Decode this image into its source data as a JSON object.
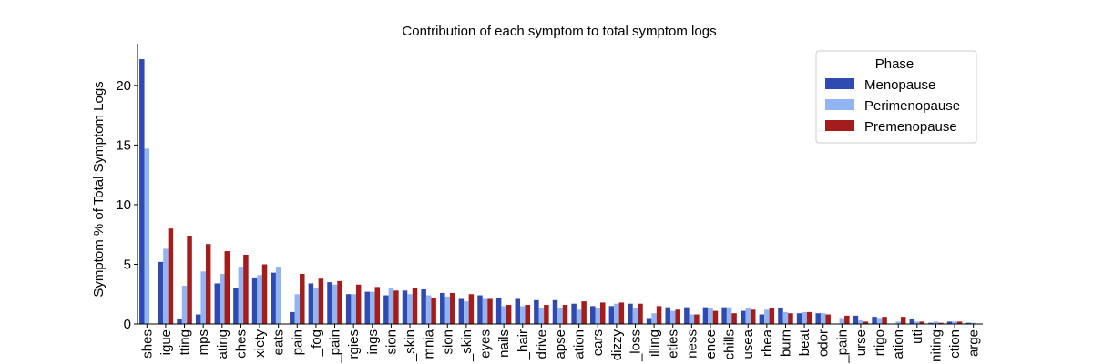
{
  "chart_data": {
    "type": "bar",
    "title": "Contribution of each symptom to total symptom logs",
    "xlabel": "",
    "ylabel": "Symptom % of Total Symptom Logs",
    "ylim": [
      0,
      23.5
    ],
    "yticks": [
      0,
      5,
      10,
      15,
      20
    ],
    "grid": false,
    "legend": {
      "title": "Phase",
      "position": "top-right"
    },
    "categories": [
      "shes",
      "igue",
      "tting",
      "mps",
      "ating",
      "ches",
      "xiety",
      "eats",
      "pain",
      "_fog",
      "_pain",
      "rgies",
      "ings",
      "sion",
      "_skin",
      "mnia",
      "sion",
      "_skin",
      "eyes",
      "nails",
      "_hair",
      "drive",
      "apse",
      "ation",
      "ears",
      "dizzy",
      "_loss",
      "illing",
      "eties",
      "ness",
      "ence",
      "chills",
      "usea",
      "rhea",
      "burn",
      "beat",
      "odor",
      "_pain",
      "urse",
      "rtigo",
      "ation",
      "uti",
      "niting",
      "ction",
      "arge"
    ],
    "series": [
      {
        "name": "Menopause",
        "color": "#2f4ab0",
        "values": [
          22.2,
          5.2,
          0.4,
          0.8,
          3.4,
          3.0,
          3.9,
          4.3,
          1.0,
          3.4,
          3.5,
          2.5,
          2.7,
          2.4,
          2.8,
          2.9,
          2.6,
          2.1,
          2.4,
          2.2,
          2.1,
          2.0,
          2.0,
          1.7,
          1.5,
          1.5,
          1.7,
          0.5,
          1.4,
          1.4,
          1.4,
          1.4,
          1.1,
          0.8,
          1.3,
          0.9,
          0.9,
          0.0,
          0.7,
          0.6,
          0.0,
          0.4,
          0.1,
          0.2,
          0.1
        ]
      },
      {
        "name": "Perimenopause",
        "color": "#92b4f2",
        "values": [
          14.7,
          6.3,
          3.2,
          4.4,
          4.2,
          4.8,
          4.1,
          4.8,
          2.5,
          3.0,
          3.3,
          2.5,
          2.7,
          3.0,
          2.5,
          2.4,
          2.3,
          1.9,
          2.1,
          1.5,
          1.5,
          1.3,
          1.3,
          1.2,
          1.3,
          1.7,
          1.3,
          0.9,
          1.1,
          0.8,
          1.3,
          1.4,
          1.3,
          1.2,
          1.0,
          1.0,
          0.9,
          0.5,
          0.3,
          0.5,
          0.2,
          0.2,
          0.2,
          0.2,
          0.1
        ]
      },
      {
        "name": "Premenopause",
        "color": "#a41c1c",
        "values": [
          0.0,
          8.0,
          7.4,
          6.7,
          6.1,
          5.8,
          5.0,
          0.0,
          4.2,
          3.8,
          3.6,
          3.3,
          3.1,
          2.8,
          3.0,
          2.2,
          2.6,
          2.5,
          2.1,
          1.6,
          1.6,
          1.6,
          1.6,
          1.9,
          1.8,
          1.8,
          1.7,
          1.5,
          1.2,
          0.8,
          1.1,
          0.9,
          1.2,
          1.3,
          0.9,
          1.0,
          0.8,
          0.7,
          0.2,
          0.6,
          0.6,
          0.2,
          0.1,
          0.2,
          0.0
        ]
      }
    ]
  }
}
